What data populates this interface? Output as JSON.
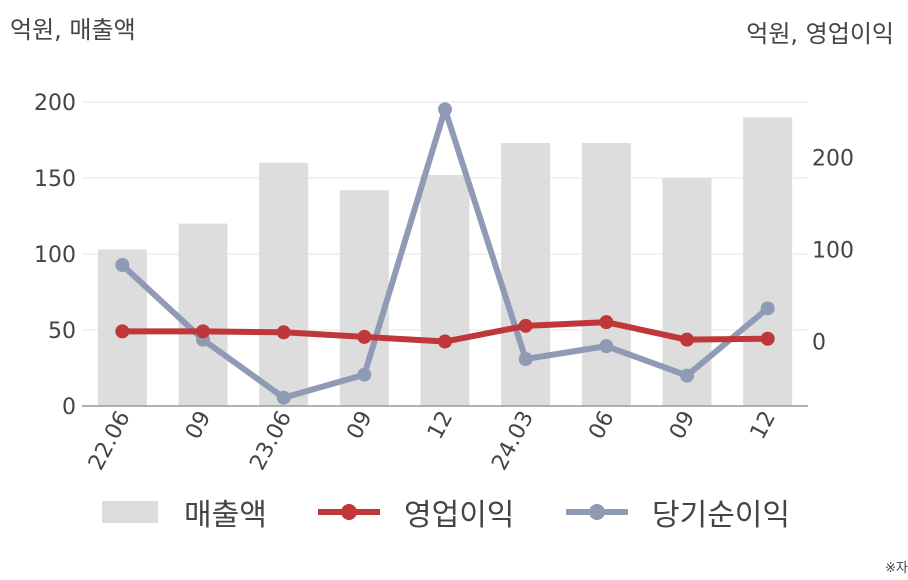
{
  "left_unit": "억원, 매출액",
  "right_unit": "억원, 영업이익",
  "note": "※자",
  "chart_data": {
    "type": "bar",
    "categories": [
      "22.06",
      "09",
      "23.06",
      "09",
      "12",
      "24.03",
      "06",
      "09",
      "12"
    ],
    "left_axis": {
      "ylim": [
        0,
        200
      ],
      "ticks": [
        0,
        50,
        100,
        150,
        200
      ]
    },
    "right_axis": {
      "ylim": [
        -70,
        260
      ],
      "ticks": [
        0,
        100,
        200
      ]
    },
    "grid": true,
    "legend_position": "bottom",
    "series": [
      {
        "name": "매출액",
        "type": "bar",
        "axis": "left",
        "color": "#dddddd",
        "values": [
          103,
          120,
          160,
          142,
          152,
          173,
          173,
          150,
          190
        ]
      },
      {
        "name": "영업이익",
        "type": "line",
        "axis": "right",
        "color": "#c0373a",
        "values": [
          11,
          11,
          10,
          5,
          0,
          17,
          21,
          2,
          3
        ]
      },
      {
        "name": "당기순이익",
        "type": "line",
        "axis": "right",
        "color": "#8f9bb5",
        "values": [
          83,
          2,
          -61,
          -36,
          252,
          -19,
          -5,
          -37,
          36
        ]
      }
    ]
  }
}
